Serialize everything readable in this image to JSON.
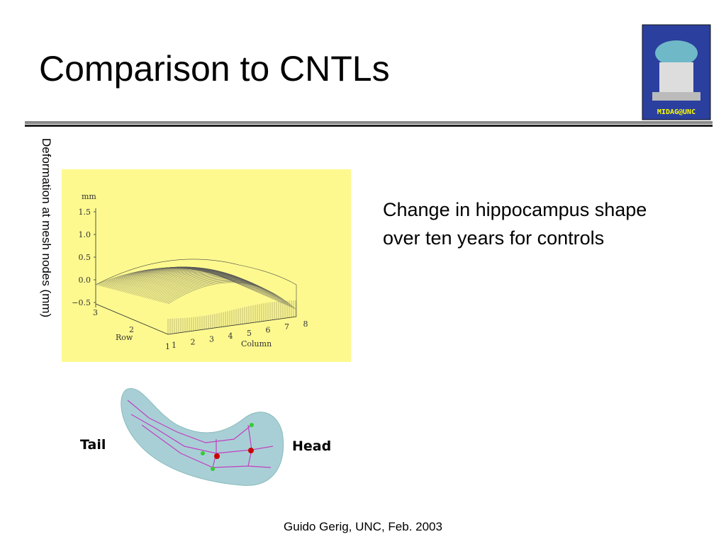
{
  "header": {
    "title": "Comparison to CNTLs",
    "logo_text": "MIDAG@UNC"
  },
  "figure": {
    "side_label": "Deformation at mesh nodes (mm)",
    "plot": {
      "unit": "mm",
      "z_ticks": [
        "1.5",
        "1.0",
        "0.5",
        "0.0",
        "−0.5"
      ],
      "row_label": "Row",
      "row_ticks": [
        "3",
        "2",
        "1"
      ],
      "column_label": "Column",
      "column_ticks": [
        "1",
        "2",
        "3",
        "4",
        "5",
        "6",
        "7",
        "8"
      ]
    },
    "shape_labels": {
      "tail": "Tail",
      "head": "Head"
    }
  },
  "description": "Change in hippocampus shape over ten years for controls",
  "footer": "Guido Gerig, UNC, Feb. 2003"
}
